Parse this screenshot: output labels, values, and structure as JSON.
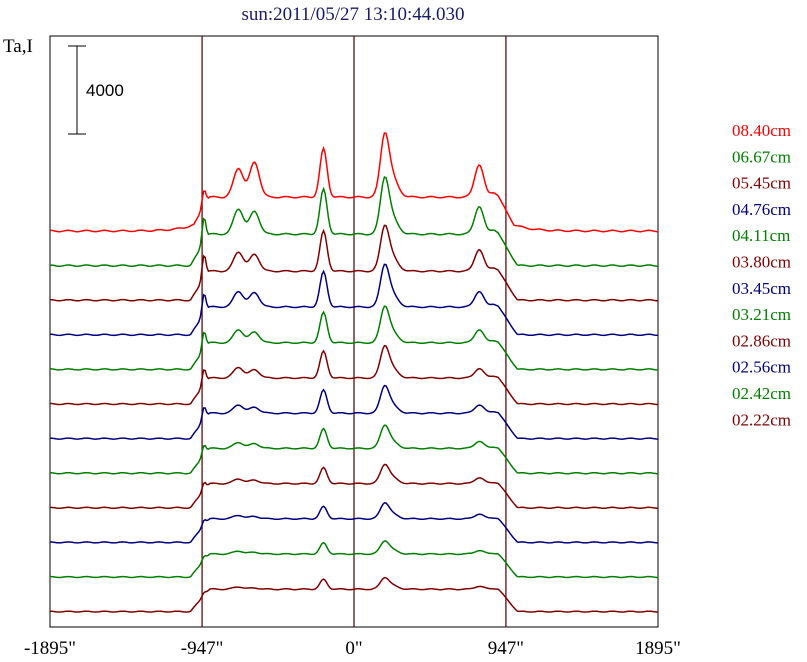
{
  "chart_data": {
    "type": "line",
    "title": "sun:2011/05/27 13:10:44.030",
    "ylabel": "Ta,I",
    "xlim": [
      -1895,
      1895
    ],
    "x_ticks": [
      -1895,
      -947,
      0,
      947,
      1895
    ],
    "x_tick_labels": [
      "-1895\"",
      "-947\"",
      "0\"",
      "947\"",
      "1895\""
    ],
    "vertical_lines_x": [
      -947,
      0,
      947
    ],
    "scale_bar": {
      "label": "4000",
      "value": 4000
    },
    "grid": false,
    "legend_position": "right",
    "series": [
      {
        "name": "08.40cm",
        "color": "#ff0000",
        "baseline": 5000,
        "limb_peak": 1450,
        "mid_peaks": [
          4000,
          2400,
          2900,
          5000,
          4300,
          2700,
          2200,
          1700
        ],
        "floor": 2800,
        "gentle_edge": true
      },
      {
        "name": "06.67cm",
        "color": "#008000",
        "baseline": 4450,
        "limb_peak": 2180,
        "mid_peaks": [
          3700,
          2100,
          1900,
          4100,
          3900,
          2300,
          2100,
          1600
        ],
        "floor": 2600,
        "gentle_edge": false
      },
      {
        "name": "05.45cm",
        "color": "#800000",
        "baseline": 3950,
        "limb_peak": 2100,
        "mid_peaks": [
          3300,
          1600,
          1400,
          3500,
          3100,
          1800,
          1700,
          1300
        ],
        "floor": 2400,
        "gentle_edge": false
      },
      {
        "name": "04.76cm",
        "color": "#000080",
        "baseline": 3400,
        "limb_peak": 1800,
        "mid_peaks": [
          2900,
          1300,
          1200,
          3200,
          2900,
          1300,
          1300,
          1200
        ],
        "floor": 2300,
        "gentle_edge": false
      },
      {
        "name": "04.11cm",
        "color": "#008000",
        "baseline": 2850,
        "limb_peak": 1600,
        "mid_peaks": [
          2500,
          1100,
          900,
          2700,
          2500,
          1100,
          1100,
          1000
        ],
        "floor": 2200,
        "gentle_edge": false
      },
      {
        "name": "03.80cm",
        "color": "#800000",
        "baseline": 2350,
        "limb_peak": 1400,
        "mid_peaks": [
          2200,
          900,
          700,
          2400,
          2200,
          800,
          900,
          900
        ],
        "floor": 2150,
        "gentle_edge": false
      },
      {
        "name": "03.45cm",
        "color": "#000080",
        "baseline": 1800,
        "limb_peak": 1150,
        "mid_peaks": [
          1900,
          700,
          500,
          2000,
          1900,
          700,
          800,
          800
        ],
        "floor": 2100,
        "gentle_edge": false
      },
      {
        "name": "03.21cm",
        "color": "#008000",
        "baseline": 1300,
        "limb_peak": 900,
        "mid_peaks": [
          1600,
          500,
          400,
          1700,
          1600,
          600,
          600,
          700
        ],
        "floor": 2050,
        "gentle_edge": false
      },
      {
        "name": "02.86cm",
        "color": "#800000",
        "baseline": 800,
        "limb_peak": 700,
        "mid_peaks": [
          1300,
          400,
          300,
          1500,
          1300,
          500,
          500,
          600
        ],
        "floor": 2000,
        "gentle_edge": false
      },
      {
        "name": "02.56cm",
        "color": "#000080",
        "baseline": 250,
        "limb_peak": 500,
        "mid_peaks": [
          1000,
          300,
          200,
          1200,
          1100,
          400,
          400,
          500
        ],
        "floor": 1950,
        "gentle_edge": false
      },
      {
        "name": "02.42cm",
        "color": "#008000",
        "baseline": -250,
        "limb_peak": 400,
        "mid_peaks": [
          900,
          250,
          150,
          1000,
          900,
          300,
          300,
          400
        ],
        "floor": 1900,
        "gentle_edge": false
      },
      {
        "name": "02.22cm",
        "color": "#800000",
        "baseline": -750,
        "limb_peak": 300,
        "mid_peaks": [
          800,
          200,
          100,
          900,
          800,
          250,
          250,
          350
        ],
        "floor": 1850,
        "gentle_edge": false
      }
    ]
  }
}
